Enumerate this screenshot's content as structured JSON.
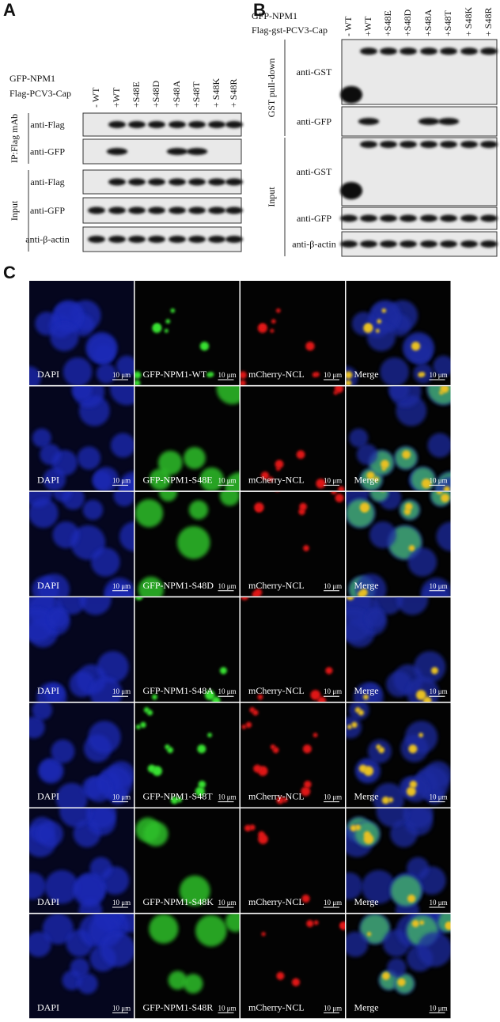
{
  "panel_a": {
    "label": "A",
    "constructs": [
      "GFP-NPM1",
      "Flag-PCV3-Cap"
    ],
    "lanes": [
      "- WT",
      "+WT",
      "+S48E",
      "+S48D",
      "+S48A",
      "+S48T",
      "+ S48K",
      "+ S48R"
    ],
    "groups": [
      {
        "label": "IP:Flag mAb",
        "rows": [
          "anti-Flag",
          "anti-GFP"
        ]
      },
      {
        "label": "Input",
        "rows": [
          "anti-Flag",
          "anti-GFP",
          "anti-β-actin"
        ]
      }
    ]
  },
  "panel_b": {
    "label": "B",
    "constructs": [
      "GFP-NPM1",
      "Flag-gst-PCV3-Cap"
    ],
    "lanes": [
      "- WT",
      "+WT",
      "+S48E",
      "+S48D",
      "+S48A",
      "+S48T",
      "+ S48K",
      "+ S48R"
    ],
    "groups": [
      {
        "label": "GST pull-down",
        "rows": [
          "anti-GST",
          "anti-GFP"
        ]
      },
      {
        "label": "Input",
        "rows": [
          "anti-GST",
          "anti-GFP",
          "anti-β-actin"
        ]
      }
    ]
  },
  "panel_c": {
    "label": "C",
    "scale_bar": "10 μm",
    "rows": [
      [
        "DAPI",
        "GFP-NPM1-WT",
        "mCherry-NCL",
        "Merge"
      ],
      [
        "DAPI",
        "GFP-NPM1-S48E",
        "mCherry-NCL",
        "Merge"
      ],
      [
        "DAPI",
        "GFP-NPM1-S48D",
        "mCherry-NCL",
        "Merge"
      ],
      [
        "DAPI",
        "GFP-NPM1-S48A",
        "mCherry-NCL",
        "Merge"
      ],
      [
        "DAPI",
        "GFP-NPM1-S48T",
        "mCherry-NCL",
        "Merge"
      ],
      [
        "DAPI",
        "GFP-NPM1-S48K",
        "mCherry-NCL",
        "Merge"
      ],
      [
        "DAPI",
        "GFP-NPM1-S48R",
        "mCherry-NCL",
        "Merge"
      ]
    ]
  }
}
